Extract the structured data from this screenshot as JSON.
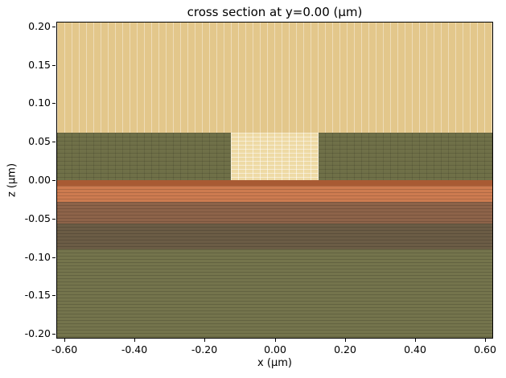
{
  "chart_data": {
    "type": "heatmap",
    "title": "cross section at y=0.00 (μm)",
    "xlabel": "x (μm)",
    "ylabel": "z (μm)",
    "xlim": [
      -0.62,
      0.62
    ],
    "zlim": [
      -0.205,
      0.205
    ],
    "legend": "none",
    "grid": "fine simulation mesh overlay (vertical lines above z=0, horizontal lines below)",
    "xticks": {
      "values": [
        -0.6,
        -0.4,
        -0.2,
        0.0,
        0.2,
        0.4,
        0.6
      ],
      "labels": [
        "-0.60",
        "-0.40",
        "-0.20",
        "0.00",
        "0.20",
        "0.40",
        "0.60"
      ]
    },
    "zticks": {
      "values": [
        -0.2,
        -0.15,
        -0.1,
        -0.05,
        0.0,
        0.05,
        0.1,
        0.15,
        0.2
      ],
      "labels": [
        "-0.20",
        "-0.15",
        "-0.10",
        "-0.05",
        "0.00",
        "0.05",
        "0.10",
        "0.15",
        "0.20"
      ]
    },
    "regions": [
      {
        "name": "upper-cladding",
        "x0": -0.62,
        "x1": 0.62,
        "z0": 0.062,
        "z1": 0.205,
        "color": "#e3c78b",
        "grid": "v-light"
      },
      {
        "name": "slab-layer",
        "x0": -0.62,
        "x1": 0.62,
        "z0": 0.0,
        "z1": 0.062,
        "color": "#6f7048",
        "grid": "cross-dark"
      },
      {
        "name": "ridge-gap",
        "x0": -0.125,
        "x1": 0.125,
        "z0": 0.0,
        "z1": 0.062,
        "color": "#eedaa5",
        "grid": "cross-light"
      },
      {
        "name": "surface-line",
        "x0": -0.62,
        "x1": 0.62,
        "z0": -0.007,
        "z1": 0.0,
        "color": "#a85a33",
        "grid": "none"
      },
      {
        "name": "orange-band",
        "x0": -0.62,
        "x1": 0.62,
        "z0": -0.028,
        "z1": -0.007,
        "color": "#cd7b50",
        "grid": "h-dark"
      },
      {
        "name": "brown-band",
        "x0": -0.62,
        "x1": 0.62,
        "z0": -0.056,
        "z1": -0.028,
        "color": "#8d6349",
        "grid": "h-dark"
      },
      {
        "name": "dark-band",
        "x0": -0.62,
        "x1": 0.62,
        "z0": -0.09,
        "z1": -0.056,
        "color": "#6b5c45",
        "grid": "h-dark"
      },
      {
        "name": "substrate",
        "x0": -0.62,
        "x1": 0.62,
        "z0": -0.205,
        "z1": -0.09,
        "color": "#74744c",
        "grid": "h-dark"
      }
    ]
  }
}
